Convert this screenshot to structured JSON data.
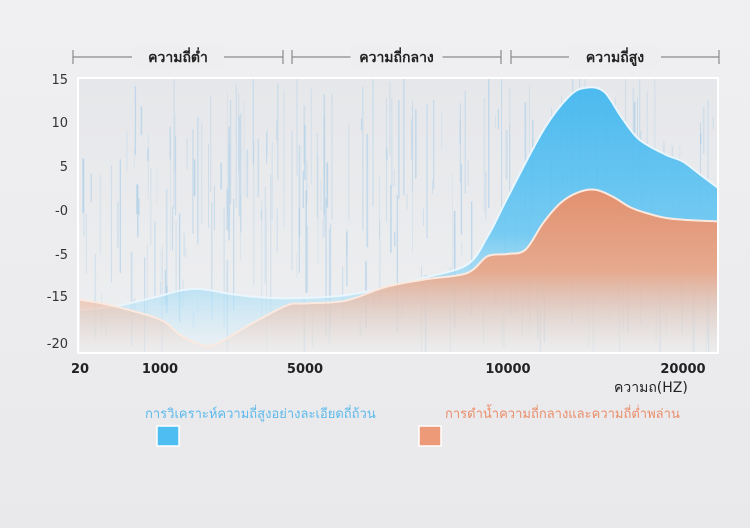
{
  "chart_data": {
    "type": "area",
    "bands": [
      {
        "label": "ความถี่ต่ำ",
        "from": 20,
        "to": 5000
      },
      {
        "label": "ความถี่กลาง",
        "from": 5000,
        "to": 10000
      },
      {
        "label": "ความถี่สูง",
        "from": 10000,
        "to": 22000
      }
    ],
    "y_ticks": [
      "15",
      "10",
      "5",
      "-0",
      "-5",
      "-15",
      "-20"
    ],
    "ylim": [
      -20,
      15
    ],
    "x_ticks": [
      {
        "label": "20",
        "value": 20
      },
      {
        "label": "1000",
        "value": 1000
      },
      {
        "label": "5000",
        "value": 5000
      },
      {
        "label": "10000",
        "value": 10000
      },
      {
        "label": "20000",
        "value": 20000
      }
    ],
    "xlim": [
      20,
      22000
    ],
    "xlabel": "ความถ(HZ)",
    "series": [
      {
        "name": "การวิเคราะห์ความถี่สูงอย่างละเอียดถี่ถ้วน",
        "color": "#4dbdf2",
        "points": [
          [
            20,
            -16.5
          ],
          [
            500,
            -16
          ],
          [
            1000,
            -15
          ],
          [
            1500,
            -13.8
          ],
          [
            2000,
            -13.3
          ],
          [
            2500,
            -13.8
          ],
          [
            3000,
            -14.6
          ],
          [
            4000,
            -15.2
          ],
          [
            5000,
            -15.2
          ],
          [
            6000,
            -14.8
          ],
          [
            7000,
            -13
          ],
          [
            8000,
            -10.5
          ],
          [
            9000,
            -7.5
          ],
          [
            9500,
            -3
          ],
          [
            10000,
            1.5
          ],
          [
            12000,
            9
          ],
          [
            13500,
            13
          ],
          [
            14500,
            14
          ],
          [
            15500,
            13.5
          ],
          [
            16500,
            10.5
          ],
          [
            17500,
            8
          ],
          [
            19000,
            6.3
          ],
          [
            20000,
            5.5
          ],
          [
            21000,
            4
          ],
          [
            22000,
            2.5
          ]
        ]
      },
      {
        "name": "การดำน้ำความถี่กลางและความถี่ต่ำพล่าน",
        "color": "#ec9a78",
        "points": [
          [
            20,
            -15.4
          ],
          [
            400,
            -16
          ],
          [
            1000,
            -17.5
          ],
          [
            1500,
            -19
          ],
          [
            2000,
            -20
          ],
          [
            2500,
            -20.2
          ],
          [
            3500,
            -18
          ],
          [
            4500,
            -16
          ],
          [
            5000,
            -15.8
          ],
          [
            6000,
            -15.5
          ],
          [
            7000,
            -12.8
          ],
          [
            8000,
            -11
          ],
          [
            9000,
            -9.5
          ],
          [
            9500,
            -5.5
          ],
          [
            10000,
            -5
          ],
          [
            11000,
            -4.5
          ],
          [
            12000,
            -1.5
          ],
          [
            13000,
            0.8
          ],
          [
            14000,
            2
          ],
          [
            15000,
            2.3
          ],
          [
            16000,
            1.5
          ],
          [
            17000,
            0.3
          ],
          [
            18000,
            -0.4
          ],
          [
            19000,
            -0.9
          ],
          [
            20000,
            -1.1
          ],
          [
            22000,
            -1.3
          ]
        ]
      }
    ]
  }
}
